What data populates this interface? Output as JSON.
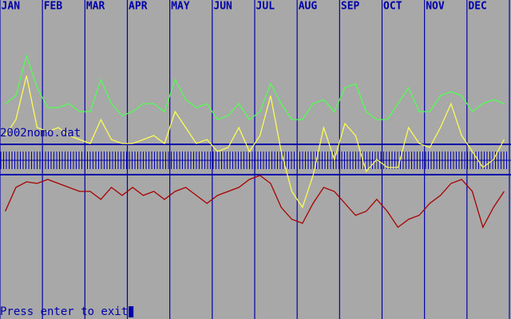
{
  "chart_data": {
    "type": "line",
    "categories": [
      null,
      "JAN",
      null,
      null,
      null,
      "FEB",
      null,
      null,
      null,
      "MAR",
      null,
      null,
      null,
      "APR",
      null,
      null,
      null,
      "MAY",
      null,
      null,
      null,
      "JUN",
      null,
      null,
      null,
      "JUL",
      null,
      null,
      null,
      "AUG",
      null,
      null,
      null,
      "SEP",
      null,
      null,
      null,
      "OCT",
      null,
      null,
      null,
      "NOV",
      null,
      null,
      null,
      "DEC",
      null,
      null
    ],
    "ylim": [
      0,
      400
    ],
    "series": [
      {
        "color": "#54fc54",
        "values": [
          270,
          280,
          330,
          290,
          265,
          265,
          270,
          260,
          260,
          300,
          270,
          255,
          260,
          270,
          270,
          260,
          300,
          275,
          265,
          270,
          250,
          255,
          270,
          250,
          260,
          295,
          270,
          250,
          250,
          270,
          275,
          260,
          290,
          295,
          260,
          250,
          250,
          270,
          290,
          260,
          260,
          280,
          285,
          280,
          260,
          270,
          275,
          270
        ]
      },
      {
        "color": "#fcfc54",
        "values": [
          230,
          250,
          305,
          240,
          235,
          240,
          230,
          225,
          220,
          250,
          225,
          220,
          220,
          225,
          230,
          220,
          260,
          240,
          220,
          225,
          210,
          215,
          240,
          210,
          230,
          280,
          210,
          160,
          140,
          180,
          240,
          200,
          245,
          230,
          185,
          200,
          190,
          190,
          240,
          220,
          215,
          240,
          270,
          230,
          210,
          190,
          200,
          225
        ]
      },
      {
        "color": "#a80000",
        "values": [
          135,
          165,
          172,
          170,
          175,
          170,
          165,
          160,
          160,
          150,
          165,
          155,
          165,
          155,
          160,
          150,
          160,
          165,
          155,
          145,
          155,
          160,
          165,
          175,
          180,
          170,
          140,
          125,
          120,
          145,
          165,
          160,
          145,
          130,
          135,
          150,
          135,
          115,
          125,
          130,
          145,
          155,
          170,
          175,
          160,
          115,
          140,
          160
        ]
      }
    ]
  },
  "file_label": "2002nomo.dat",
  "prompt": "Press enter to exit"
}
